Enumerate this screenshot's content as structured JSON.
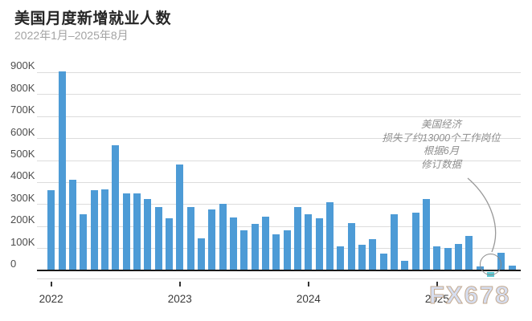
{
  "header": {
    "title": "美国月度新增就业人数",
    "subtitle": "2022年1月–2025年8月"
  },
  "watermark": "FX678",
  "annotation": {
    "lines": [
      "美国经济",
      "损失了约13000个工作岗位",
      "根据6月",
      "修订数据"
    ]
  },
  "colors": {
    "bar": "#4d9bd6",
    "highlight_bar": "#5bc8d2",
    "grid": "#dcdcdc",
    "axis": "#1a1a1a",
    "callout_circle": "#8a8a8a",
    "title_text": "#262626",
    "subtitle_text": "#a3a3a3",
    "annotation_text": "#8f8f8f"
  },
  "chart_data": {
    "type": "bar",
    "title": "美国月度新增就业人数",
    "subtitle": "2022年1月–2025年8月",
    "ylabel": "",
    "xlabel": "",
    "unit": "thousands of jobs (K)",
    "grid": "horizontal",
    "legend": "none",
    "ylim": [
      -50,
      900
    ],
    "yticks": [
      "0",
      "100K",
      "200K",
      "300K",
      "400K",
      "500K",
      "600K",
      "700K",
      "800K",
      "900K"
    ],
    "ytick_values": [
      0,
      100,
      200,
      300,
      400,
      500,
      600,
      700,
      800,
      900
    ],
    "xticks": [
      {
        "label": "2022",
        "index": 0
      },
      {
        "label": "2023",
        "index": 12
      },
      {
        "label": "2024",
        "index": 24
      },
      {
        "label": "2025",
        "index": 36
      }
    ],
    "x": [
      "2022-01",
      "2022-02",
      "2022-03",
      "2022-04",
      "2022-05",
      "2022-06",
      "2022-07",
      "2022-08",
      "2022-09",
      "2022-10",
      "2022-11",
      "2022-12",
      "2023-01",
      "2023-02",
      "2023-03",
      "2023-04",
      "2023-05",
      "2023-06",
      "2023-07",
      "2023-08",
      "2023-09",
      "2023-10",
      "2023-11",
      "2023-12",
      "2024-01",
      "2024-02",
      "2024-03",
      "2024-04",
      "2024-05",
      "2024-06",
      "2024-07",
      "2024-08",
      "2024-09",
      "2024-10",
      "2024-11",
      "2024-12",
      "2025-01",
      "2025-02",
      "2025-03",
      "2025-04",
      "2025-05",
      "2025-06",
      "2025-07",
      "2025-08"
    ],
    "values": [
      364,
      904,
      414,
      254,
      364,
      370,
      568,
      352,
      350,
      324,
      290,
      239,
      482,
      287,
      146,
      278,
      303,
      240,
      184,
      210,
      246,
      165,
      182,
      290,
      256,
      236,
      310,
      108,
      216,
      118,
      144,
      78,
      255,
      44,
      261,
      323,
      111,
      102,
      120,
      158,
      19,
      -13,
      79,
      22
    ],
    "highlight_index": 41,
    "highlight_annotation": "美国经济 损失了约13000个工作岗位 根据6月 修订数据"
  }
}
